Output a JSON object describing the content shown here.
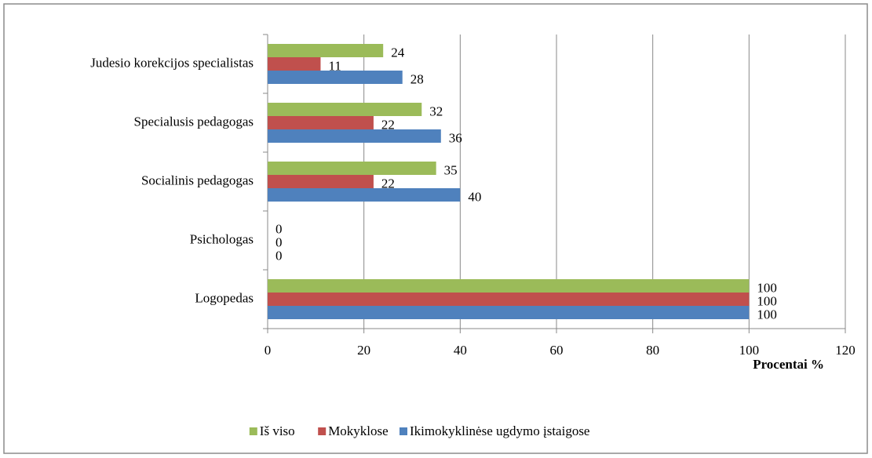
{
  "chart_data": {
    "type": "hbar",
    "categories": [
      "Judesio korekcijos specialistas",
      "Specialusis pedagogas",
      "Socialinis pedagogas",
      "Psichologas",
      "Logopedas"
    ],
    "series": [
      {
        "name": "Iš viso",
        "color": "#9bbb59",
        "values": [
          24,
          32,
          35,
          0,
          100
        ]
      },
      {
        "name": "Mokyklose",
        "color": "#c0504d",
        "values": [
          11,
          22,
          22,
          0,
          100
        ]
      },
      {
        "name": "Ikimokyklinėse ugdymo įstaigose",
        "color": "#4f81bd",
        "values": [
          28,
          36,
          40,
          0,
          100
        ]
      }
    ],
    "xlim": [
      0,
      120
    ],
    "xticks": [
      0,
      20,
      40,
      60,
      80,
      100,
      120
    ],
    "xlabel": "Procentai %",
    "grid": true
  }
}
